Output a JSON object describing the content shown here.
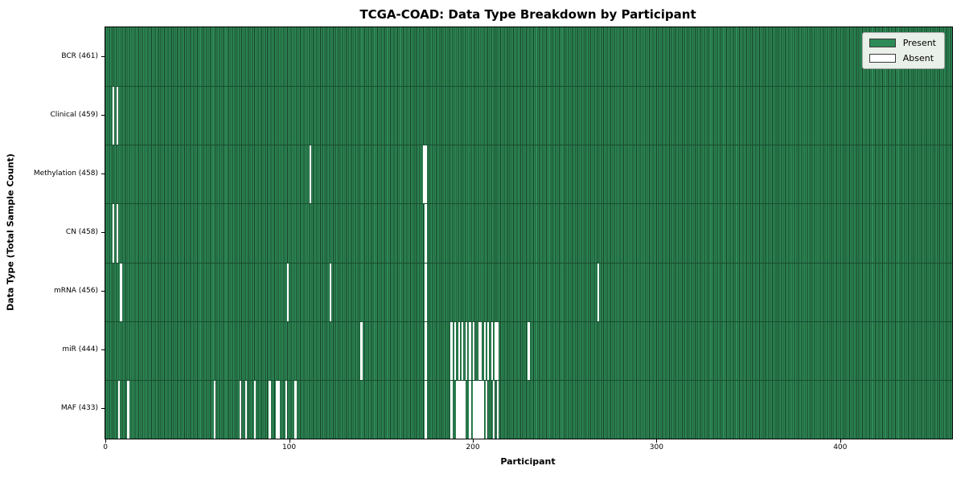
{
  "chart_data": {
    "type": "heatmap",
    "title": "TCGA-COAD: Data Type Breakdown by Participant",
    "xlabel": "Participant",
    "ylabel": "Data Type (Total Sample Count)",
    "legend": {
      "position": "upper right",
      "entries": [
        {
          "label": "Present",
          "color": "#2E8B57"
        },
        {
          "label": "Absent",
          "color": "#FFFFFF"
        }
      ]
    },
    "n_participants": 461,
    "xlim": [
      -0.5,
      460.5
    ],
    "x_ticks": [
      0,
      100,
      200,
      300,
      400
    ],
    "grid": false,
    "colors": {
      "present": "#2E8B57",
      "absent": "#FFFFFF",
      "bar_edge": "rgba(0,0,0,0.55)"
    },
    "rows": [
      {
        "name": "BCR",
        "label": "BCR (461)",
        "present_count": 461,
        "absent_indices": []
      },
      {
        "name": "Clinical",
        "label": "Clinical (459)",
        "present_count": 459,
        "absent_indices": [
          4,
          6
        ]
      },
      {
        "name": "Methylation",
        "label": "Methylation (458)",
        "present_count": 458,
        "absent_indices": [
          111,
          173,
          174
        ]
      },
      {
        "name": "CN",
        "label": "CN (458)",
        "present_count": 458,
        "absent_indices": [
          4,
          6,
          174
        ]
      },
      {
        "name": "mRNA",
        "label": "mRNA (456)",
        "present_count": 456,
        "absent_indices": [
          8,
          99,
          122,
          174,
          268
        ]
      },
      {
        "name": "miR",
        "label": "miR (444)",
        "present_count": 444,
        "absent_indices": [
          139,
          174,
          188,
          190,
          192,
          194,
          196,
          198,
          200,
          203,
          204,
          206,
          208,
          210,
          212,
          213,
          230
        ]
      },
      {
        "name": "MAF",
        "label": "MAF (433)",
        "present_count": 433,
        "absent_indices": [
          7,
          12,
          59,
          73,
          76,
          81,
          89,
          93,
          94,
          98,
          103,
          174,
          188,
          191,
          192,
          193,
          194,
          195,
          198,
          200,
          201,
          202,
          203,
          204,
          205,
          207,
          211,
          213
        ]
      }
    ]
  }
}
